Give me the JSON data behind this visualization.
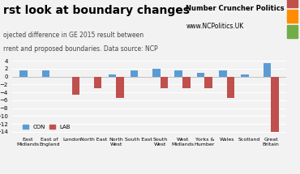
{
  "title": "rst look at boundary changes",
  "subtitle1": "ojected difference in GE 2015 result between",
  "subtitle2": "rrent and proposed boundaries. Data source: NCP",
  "branding1": "Number Cruncher Politics",
  "branding2": "www.NCPolitics.UK",
  "categories": [
    "East\nMidlands",
    "East of\nEngland",
    "London",
    "North East",
    "North\nWest",
    "South East",
    "South\nWest",
    "West\nMidlands",
    "Yorks &\nHumber",
    "Wales",
    "Scotland",
    "Great\nBritain"
  ],
  "con_values": [
    1.5,
    1.5,
    0.0,
    0.0,
    0.5,
    1.5,
    2.0,
    1.5,
    1.0,
    1.5,
    0.5,
    3.5
  ],
  "lab_values": [
    0.0,
    0.0,
    -4.5,
    -3.0,
    -5.5,
    0.0,
    -3.0,
    -3.0,
    -3.0,
    -5.5,
    0.0,
    -14.0
  ],
  "con_color": "#5B9BD5",
  "lab_color": "#C0504D",
  "ylim_min": -15,
  "ylim_max": 4,
  "background_color": "#F2F2F2",
  "grid_color": "#FFFFFF",
  "bar_width": 0.35,
  "legend_con": "CON",
  "legend_lab": "LAB",
  "traffic_colors": [
    "#C0504D",
    "#FF8C00",
    "#70AD47"
  ]
}
